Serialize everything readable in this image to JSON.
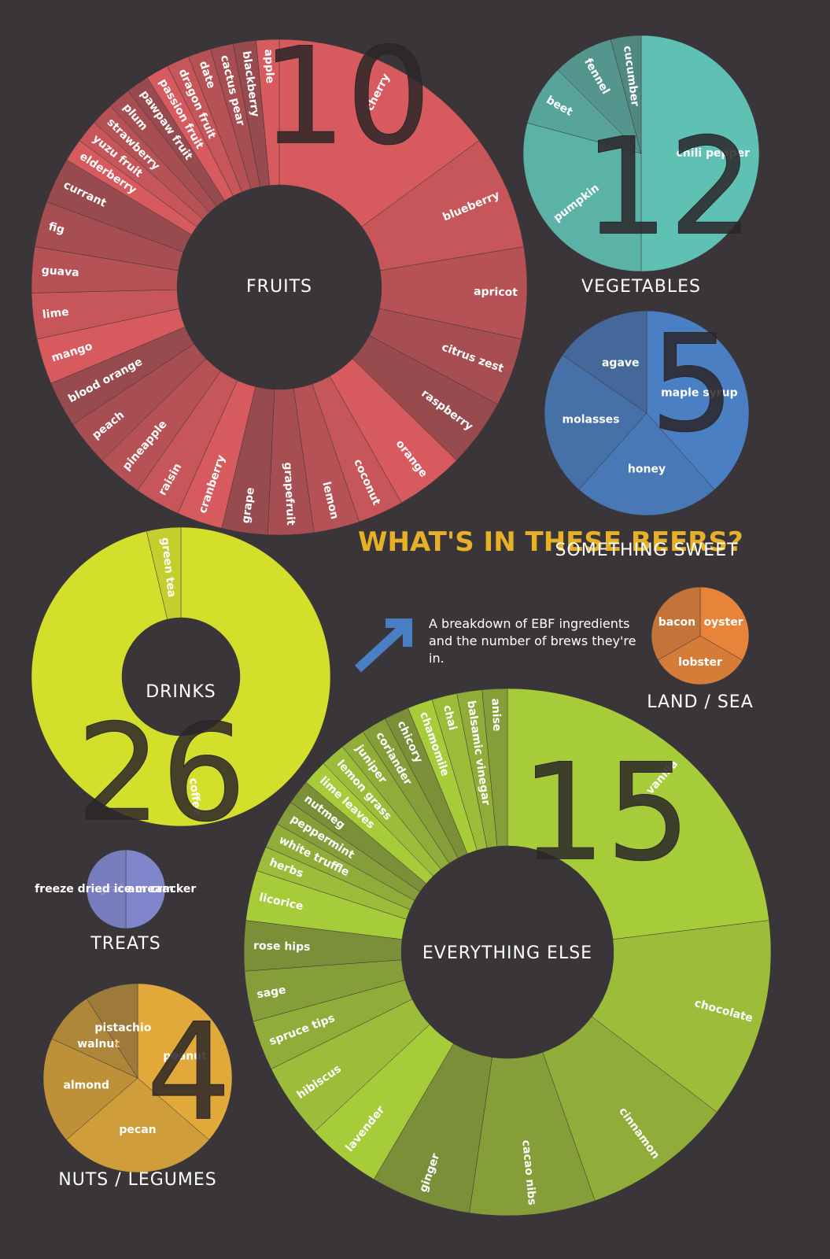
{
  "header": {
    "title": "WHAT'S IN THESE BEERS?",
    "subtitle": "A breakdown of EBF ingredients and the number of brews they're in."
  },
  "chart_data": [
    {
      "type": "donut",
      "title": "FRUITS",
      "color": "#d65a5e",
      "categories": [
        "cherry",
        "blueberry",
        "apricot",
        "citrus zest",
        "raspberry",
        "orange",
        "coconut",
        "lemon",
        "grapefruit",
        "grape",
        "cranberry",
        "raisin",
        "pineapple",
        "peach",
        "blood orange",
        "mango",
        "lime",
        "guava",
        "fig",
        "currant",
        "elderberry",
        "yuzu fruit",
        "strawberry",
        "plum",
        "pawpaw fruit",
        "passion fruit",
        "dragon fruit",
        "date",
        "cactus pear",
        "blackberry",
        "apple"
      ],
      "values": [
        10,
        5,
        4,
        3,
        3,
        3,
        2,
        2,
        2,
        2,
        2,
        2,
        2,
        2,
        2,
        2,
        2,
        2,
        2,
        2,
        1,
        1,
        1,
        1,
        1,
        1,
        1,
        1,
        1,
        1,
        1
      ]
    },
    {
      "type": "pie",
      "title": "VEGETABLES",
      "color": "#5fc0b4",
      "categories": [
        "chili pepper",
        "pumpkin",
        "beet",
        "fennel",
        "cucumber"
      ],
      "values": [
        12,
        7,
        2,
        2,
        1
      ]
    },
    {
      "type": "pie",
      "title": "SOMETHING SWEET",
      "color": "#4a7fc4",
      "categories": [
        "maple syrup",
        "honey",
        "molasses",
        "agave"
      ],
      "values": [
        5,
        3,
        3,
        2
      ]
    },
    {
      "type": "pie",
      "title": "LAND / SEA",
      "color": "#e8843a",
      "categories": [
        "oyster",
        "lobster",
        "bacon"
      ],
      "values": [
        1,
        1,
        1
      ]
    },
    {
      "type": "donut",
      "title": "DRINKS",
      "color": "#d4df2c",
      "categories": [
        "coffee",
        "green tea"
      ],
      "values": [
        26,
        1
      ]
    },
    {
      "type": "pie",
      "title": "TREATS",
      "color": "#7f86cc",
      "categories": [
        "graham cracker",
        "freeze dried ice cream"
      ],
      "values": [
        1,
        1
      ]
    },
    {
      "type": "donut",
      "title": "EVERYTHING ELSE",
      "color": "#a6cc3a",
      "categories": [
        "vanilla",
        "chocolate",
        "cinnamon",
        "cacao nibs",
        "ginger",
        "lavender",
        "hibiscus",
        "spruce tips",
        "sage",
        "rose hips",
        "licorice",
        "herbs",
        "white truffle",
        "peppermint",
        "nutmeg",
        "lime leaves",
        "lemon grass",
        "juniper",
        "coriander",
        "chicory",
        "chamomile",
        "chai",
        "balsamic vinegar",
        "anise"
      ],
      "values": [
        15,
        8,
        6,
        5,
        4,
        3,
        3,
        2,
        2,
        2,
        2,
        1,
        1,
        1,
        1,
        1,
        1,
        1,
        1,
        1,
        1,
        1,
        1,
        1
      ]
    },
    {
      "type": "pie",
      "title": "NUTS / LEGUMES",
      "color": "#e0a93a",
      "categories": [
        "peanut",
        "pecan",
        "almond",
        "walnut",
        "pistachio"
      ],
      "values": [
        4,
        3,
        2,
        1,
        1
      ]
    }
  ]
}
